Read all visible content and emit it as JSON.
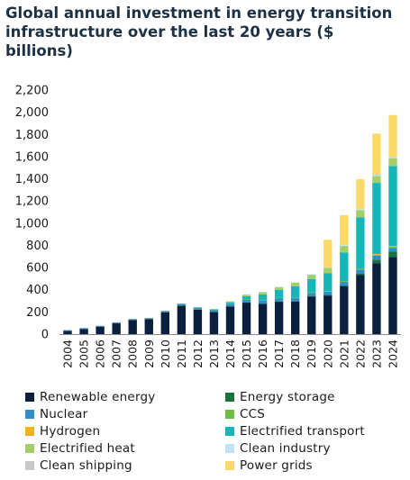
{
  "chart_data": {
    "type": "bar",
    "stacked": true,
    "title": "Global annual investment in energy transition infrastructure over the last 20 years ($ billions)",
    "xlabel": "",
    "ylabel": "",
    "ylim": [
      0,
      2200
    ],
    "yticks": [
      0,
      200,
      400,
      600,
      800,
      1000,
      1200,
      1400,
      1600,
      1800,
      2000,
      2200
    ],
    "ytick_labels": [
      "0",
      "200",
      "400",
      "600",
      "800",
      "1,000",
      "1,200",
      "1,400",
      "1,600",
      "1,800",
      "2,000",
      "2,200"
    ],
    "grid": false,
    "legend_position": "bottom",
    "categories": [
      "2004",
      "2005",
      "2006",
      "2007",
      "2008",
      "2009",
      "2010",
      "2011",
      "2012",
      "2013",
      "2014",
      "2015",
      "2016",
      "2017",
      "2018",
      "2019",
      "2020",
      "2021",
      "2022",
      "2023",
      "2024"
    ],
    "series": [
      {
        "name": "Renewable energy",
        "color": "#0b1f3f",
        "values": [
          28,
          46,
          67,
          97,
          127,
          135,
          197,
          255,
          220,
          200,
          250,
          285,
          273,
          292,
          295,
          340,
          348,
          430,
          532,
          640,
          695
        ]
      },
      {
        "name": "Energy storage",
        "color": "#17733a",
        "values": [
          0,
          0,
          0,
          0,
          0,
          0,
          0,
          0,
          0,
          0,
          0,
          1,
          2,
          3,
          4,
          4,
          5,
          8,
          15,
          32,
          48
        ]
      },
      {
        "name": "Nuclear",
        "color": "#2f8fc9",
        "values": [
          8,
          8,
          8,
          8,
          9,
          10,
          13,
          17,
          17,
          19,
          23,
          27,
          30,
          30,
          30,
          30,
          32,
          33,
          33,
          35,
          35
        ]
      },
      {
        "name": "CCS",
        "color": "#6ebd44",
        "values": [
          0,
          0,
          0,
          0,
          0,
          0,
          0,
          1,
          1,
          1,
          1,
          1,
          1,
          1,
          1,
          1,
          2,
          3,
          6,
          7,
          9
        ]
      },
      {
        "name": "Hydrogen",
        "color": "#f2b21c",
        "values": [
          0,
          0,
          0,
          0,
          0,
          0,
          0,
          0,
          0,
          0,
          0,
          0,
          0,
          0,
          0,
          1,
          1,
          1,
          2,
          9,
          8
        ]
      },
      {
        "name": "Electrified transport",
        "color": "#15b6b9",
        "values": [
          0,
          0,
          0,
          0,
          0,
          0,
          0,
          1,
          2,
          3,
          13,
          28,
          52,
          73,
          100,
          120,
          160,
          260,
          465,
          640,
          720
        ]
      },
      {
        "name": "Electrified heat",
        "color": "#a3cf6a",
        "values": [
          0,
          0,
          0,
          0,
          1,
          1,
          1,
          2,
          3,
          3,
          8,
          15,
          22,
          25,
          35,
          40,
          50,
          60,
          64,
          61,
          68
        ]
      },
      {
        "name": "Clean industry",
        "color": "#bfe3f5",
        "values": [
          0,
          0,
          0,
          0,
          0,
          0,
          0,
          0,
          0,
          0,
          0,
          1,
          1,
          2,
          2,
          3,
          4,
          8,
          9,
          12,
          14
        ]
      },
      {
        "name": "Clean shipping",
        "color": "#c8c8c8",
        "values": [
          0,
          0,
          0,
          0,
          0,
          0,
          0,
          0,
          0,
          0,
          0,
          0,
          0,
          0,
          0,
          0,
          0,
          0,
          0,
          1,
          1
        ]
      },
      {
        "name": "Power grids",
        "color": "#fad967",
        "values": [
          0,
          0,
          0,
          0,
          0,
          0,
          0,
          0,
          0,
          0,
          0,
          0,
          0,
          0,
          0,
          0,
          248,
          270,
          270,
          370,
          377
        ]
      }
    ]
  }
}
